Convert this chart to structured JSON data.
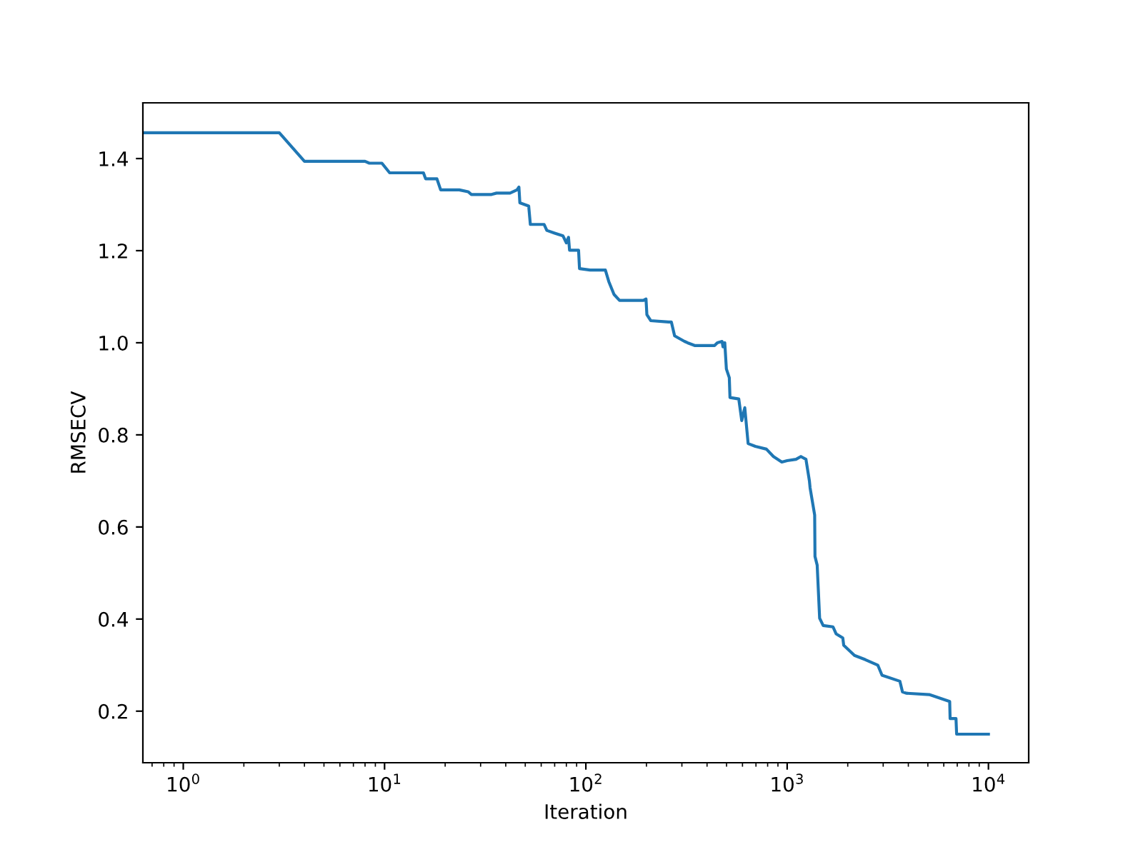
{
  "chart_data": {
    "type": "line",
    "xlabel": "Iteration",
    "ylabel": "RMSECV",
    "log": "x",
    "grid": false,
    "legend": false,
    "marker": "none",
    "line_style": "solid",
    "xlim": [
      0.63,
      15849
    ],
    "ylim": [
      0.088,
      1.521
    ],
    "xticks": [
      {
        "value": 1,
        "label": "10$^{0}$"
      },
      {
        "value": 10,
        "label": "10$^{1}$"
      },
      {
        "value": 100,
        "label": "10$^{2}$"
      },
      {
        "value": 1000,
        "label": "10$^{3}$"
      },
      {
        "value": 10000,
        "label": "10$^{4}$"
      }
    ],
    "yticks": [
      0.2,
      0.4,
      0.6,
      0.8,
      {
        "value": 1,
        "label": "1.0"
      },
      1.2,
      1.4
    ],
    "series": [
      {
        "color": "#1f77b4",
        "x": [
          0.63,
          3,
          4,
          8,
          8.4,
          9.7,
          10.6,
          15.6,
          16,
          18.2,
          19,
          23.5,
          26,
          27,
          34,
          36,
          42,
          45.5,
          46.5,
          47,
          52,
          53,
          62,
          64,
          70,
          77,
          80,
          82,
          83,
          92,
          93,
          105,
          125,
          130,
          138,
          147,
          193,
          199,
          201,
          210,
          258,
          266,
          276,
          309,
          320,
          347,
          360,
          436,
          450,
          475,
          480,
          490,
          499,
          516,
          520,
          575,
          595,
          616,
          640,
          695,
          789,
          855,
          941,
          1000,
          1107,
          1170,
          1240,
          1290,
          1300,
          1370,
          1375,
          1410,
          1450,
          1510,
          1690,
          1750,
          1890,
          1910,
          2160,
          2440,
          2820,
          2960,
          3630,
          3740,
          3900,
          5080,
          6420,
          6450,
          6900,
          6950,
          10000
        ],
        "values": [
          1.456,
          1.456,
          1.394,
          1.394,
          1.39,
          1.39,
          1.369,
          1.369,
          1.356,
          1.356,
          1.332,
          1.332,
          1.328,
          1.322,
          1.322,
          1.325,
          1.325,
          1.332,
          1.338,
          1.304,
          1.297,
          1.257,
          1.257,
          1.244,
          1.238,
          1.232,
          1.217,
          1.229,
          1.201,
          1.201,
          1.161,
          1.158,
          1.158,
          1.133,
          1.105,
          1.092,
          1.092,
          1.095,
          1.061,
          1.048,
          1.045,
          1.045,
          1.015,
          1.003,
          1.0,
          0.994,
          0.994,
          0.994,
          1.0,
          1.003,
          0.991,
          1.0,
          0.943,
          0.924,
          0.881,
          0.878,
          0.831,
          0.859,
          0.781,
          0.775,
          0.769,
          0.753,
          0.741,
          0.744,
          0.747,
          0.753,
          0.747,
          0.7,
          0.685,
          0.626,
          0.536,
          0.517,
          0.402,
          0.386,
          0.383,
          0.368,
          0.359,
          0.343,
          0.321,
          0.312,
          0.3,
          0.278,
          0.265,
          0.242,
          0.239,
          0.236,
          0.221,
          0.184,
          0.184,
          0.15,
          0.15
        ]
      }
    ]
  }
}
